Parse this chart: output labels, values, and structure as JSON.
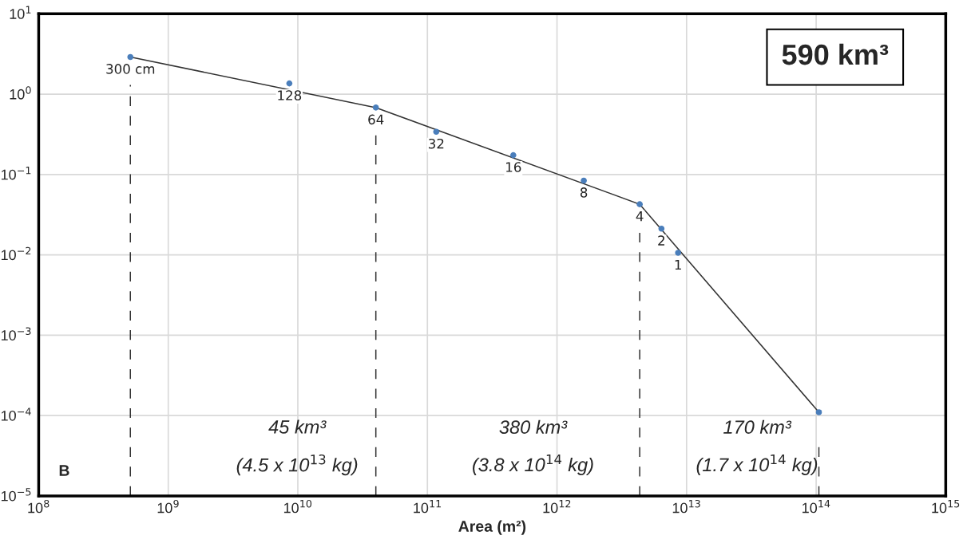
{
  "chart_data": {
    "type": "scatter",
    "xlabel": "Area (m²)",
    "x": [
      510000000.0,
      8600000000.0,
      40000000000.0,
      117000000000.0,
      460000000000.0,
      1610000000000.0,
      4350000000000.0,
      6400000000000.0,
      8600000000000.0,
      105000000000000.0
    ],
    "log": "xy",
    "series": [
      {
        "color": "#4a7ebb",
        "values": [
          2.9,
          1.36,
          0.68,
          0.34,
          0.174,
          0.084,
          0.0426,
          0.0212,
          0.0106,
          0.00011
        ],
        "marker": "circle"
      },
      {
        "type": "line",
        "color": "#333333",
        "x": [
          510000000.0,
          40000000000.0,
          4350000000000.0,
          105000000000000.0
        ],
        "values": [
          2.9,
          0.68,
          0.0426,
          0.00011
        ],
        "line_style": "solid",
        "marker": "none"
      }
    ],
    "ref_lines": [
      {
        "axis": "x",
        "value": 510000000.0,
        "color": "#333333",
        "line_style": "dashed"
      },
      {
        "axis": "x",
        "value": 40000000000.0,
        "color": "#333333",
        "line_style": "dashed"
      },
      {
        "axis": "x",
        "value": 4350000000000.0,
        "color": "#333333",
        "line_style": "dashed"
      },
      {
        "axis": "x",
        "value": 105000000000000.0,
        "color": "#333333",
        "line_style": "dashed"
      }
    ],
    "xlim": [
      100000000.0,
      1000000000000000.0
    ],
    "ylim": [
      1e-05,
      10
    ],
    "xticks": [
      {
        "value": 100000000.0,
        "label": "10$^{8}$"
      },
      {
        "value": 1000000000.0,
        "label": "10$^{9}$"
      },
      {
        "value": 10000000000.0,
        "label": "10$^{10}$"
      },
      {
        "value": 100000000000.0,
        "label": "10$^{11}$"
      },
      {
        "value": 1000000000000.0,
        "label": "10$^{12}$"
      },
      {
        "value": 10000000000000.0,
        "label": "10$^{13}$"
      },
      {
        "value": 100000000000000.0,
        "label": "10$^{14}$"
      },
      {
        "value": 1000000000000000.0,
        "label": "10$^{15}$"
      }
    ],
    "yticks": [
      {
        "value": 1e-05,
        "label": "10$^{−5}$"
      },
      {
        "value": 0.0001,
        "label": "10$^{−4}$"
      },
      {
        "value": 0.001,
        "label": "10$^{−3}$"
      },
      {
        "value": 0.01,
        "label": "10$^{−2}$"
      },
      {
        "value": 0.1,
        "label": "10$^{−1}$"
      },
      {
        "value": 1,
        "label": "10$^{0}$"
      },
      {
        "value": 10,
        "label": "10$^{1}$"
      }
    ],
    "grid": true,
    "annotations": [
      "590 km³",
      "45 km³\n(4.5 x 10$^{13}$ kg)",
      "380 km³\n(3.8 x 10$^{14}$ kg)",
      "170 km³\n(1.7 x 10$^{14}$ kg)",
      "B",
      {
        "text": "300 cm",
        "x": 510000000.0,
        "y": 2.9
      },
      {
        "text": "128",
        "x": 8600000000.0,
        "y": 1.36
      },
      {
        "text": "64",
        "x": 40000000000.0,
        "y": 0.68
      },
      {
        "text": "32",
        "x": 117000000000.0,
        "y": 0.34
      },
      {
        "text": "16",
        "x": 460000000000.0,
        "y": 0.174
      },
      {
        "text": "8",
        "x": 1610000000000.0,
        "y": 0.084
      },
      {
        "text": "4",
        "x": 4350000000000.0,
        "y": 0.0426
      },
      {
        "text": "2",
        "x": 6400000000000.0,
        "y": 0.0212
      },
      {
        "text": "1",
        "x": 8600000000000.0,
        "y": 0.0106
      }
    ]
  }
}
